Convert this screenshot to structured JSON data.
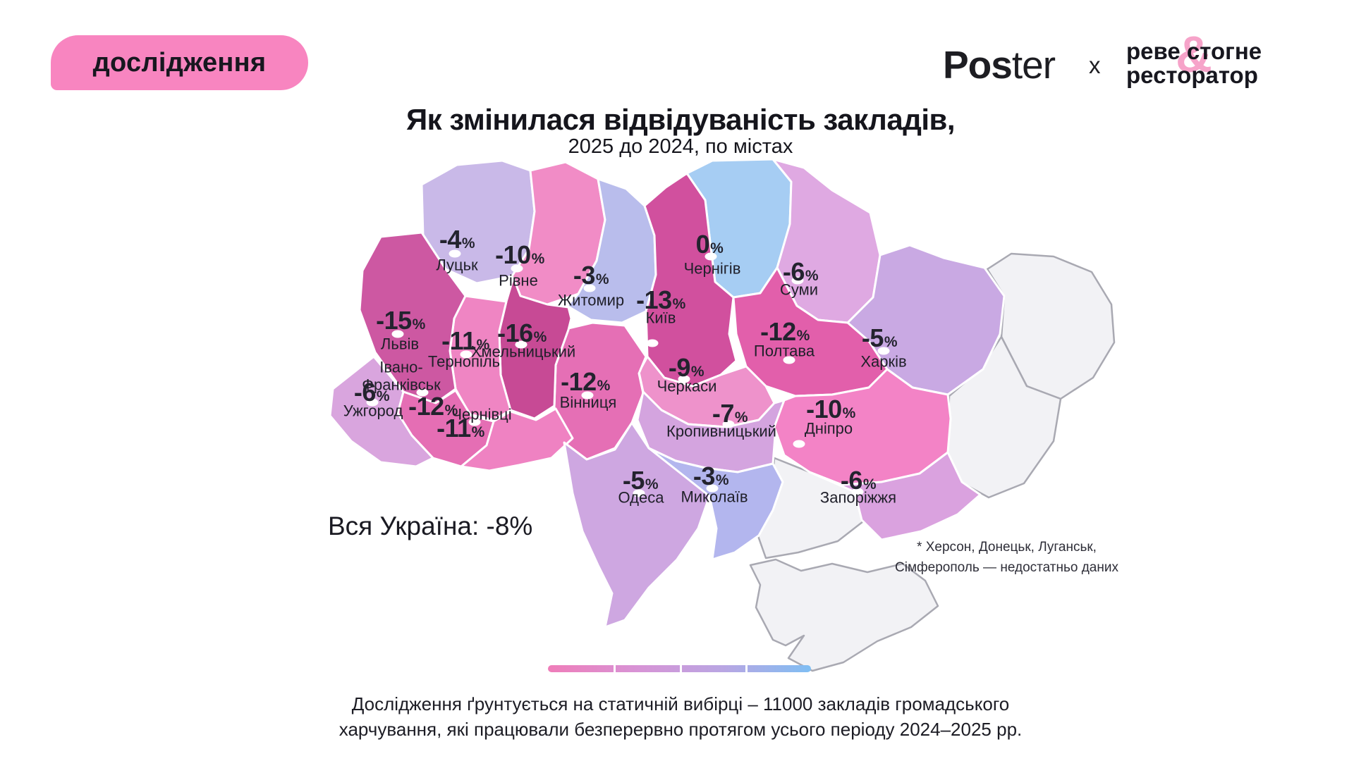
{
  "badge": {
    "label": "дослідження",
    "bg": "#F885C0",
    "text_color": "#17171F"
  },
  "header": {
    "poster_bold": "Pos",
    "poster_regular": "ter",
    "separator": "x",
    "brand_line1_a": "реве",
    "brand_amp": "&",
    "brand_line1_b": "стогне",
    "brand_line2": "ресторатор",
    "amp_color": "#F6A3C9"
  },
  "title": {
    "main": "Як змінилася відвідуваність закладів,",
    "subtitle": "2025 до 2024, по містах"
  },
  "summary": {
    "text": "Вся Україна: -8%"
  },
  "footnote": {
    "line1": "* Херсон, Донецьк, Луганськ,",
    "line2": "Сімферополь — недостатньо даних"
  },
  "footer": {
    "line1": "Дослідження ґрунтується на статичній вибірці – 11000 закладів громадського",
    "line2": "харчування, які працювали безперервно протягом усього періоду 2024–2025 рр."
  },
  "legend": {
    "gradient_colors": [
      "#EF7DB9",
      "#D893D5",
      "#B9A6E3",
      "#7FBEF3"
    ]
  },
  "chart_data": {
    "type": "choropleth-map",
    "title": "Як змінилася відвідуваність закладів, 2025 до 2024, по містах",
    "unit": "%",
    "overall_ukraine": "-8%",
    "regions": [
      {
        "id": "lutsk",
        "city": "Луцьк",
        "value": "-4%",
        "value_num": -4,
        "color": "#C9B9E8"
      },
      {
        "id": "rivne",
        "city": "Рівне",
        "value": "-10%",
        "value_num": -10,
        "color": "#F18CC6"
      },
      {
        "id": "zhytomyr",
        "city": "Житомир",
        "value": "-3%",
        "value_num": -3,
        "color": "#B9BDEC"
      },
      {
        "id": "chernihiv",
        "city": "Чернігів",
        "value": "0%",
        "value_num": 0,
        "color": "#A6CDF3"
      },
      {
        "id": "sumy",
        "city": "Суми",
        "value": "-6%",
        "value_num": -6,
        "color": "#DFA9E2"
      },
      {
        "id": "kyiv",
        "city": "Київ",
        "value": "-13%",
        "value_num": -13,
        "color": "#D1509E"
      },
      {
        "id": "kharkiv",
        "city": "Харків",
        "value": "-5%",
        "value_num": -5,
        "color": "#C9A9E3"
      },
      {
        "id": "poltava",
        "city": "Полтава",
        "value": "-12%",
        "value_num": -12,
        "color": "#E25FAB"
      },
      {
        "id": "cherkasy",
        "city": "Черкаси",
        "value": "-9%",
        "value_num": -9,
        "color": "#EE92CB"
      },
      {
        "id": "vinnytsia",
        "city": "Вінниця",
        "value": "-12%",
        "value_num": -12,
        "color": "#E56FB5"
      },
      {
        "id": "khmelnytskyi",
        "city": "Хмельницький",
        "value": "-16%",
        "value_num": -16,
        "color": "#C74A95"
      },
      {
        "id": "ternopil",
        "city": "Тернопіль",
        "value": "-11%",
        "value_num": -11,
        "color": "#EF85C3"
      },
      {
        "id": "lviv",
        "city": "Львів",
        "value": "-15%",
        "value_num": -15,
        "color": "#CD58A2"
      },
      {
        "id": "ivano",
        "city": "Івано-Франківськ",
        "value": "-12%",
        "value_num": -12,
        "color": "#E56EB4"
      },
      {
        "id": "chernivtsi",
        "city": "Чернівці",
        "value": "-11%",
        "value_num": -11,
        "color": "#EF82C2"
      },
      {
        "id": "uzhhorod",
        "city": "Ужгород",
        "value": "-6%",
        "value_num": -6,
        "color": "#D9A5DE"
      },
      {
        "id": "kropyvnytskyi",
        "city": "Кропивницький",
        "value": "-7%",
        "value_num": -7,
        "color": "#D4A4DF"
      },
      {
        "id": "odesa",
        "city": "Одеса",
        "value": "-5%",
        "value_num": -5,
        "color": "#CEA7E1"
      },
      {
        "id": "mykolaiv",
        "city": "Миколаїв",
        "value": "-3%",
        "value_num": -3,
        "color": "#B3B6EE"
      },
      {
        "id": "dnipro",
        "city": "Дніпро",
        "value": "-10%",
        "value_num": -10,
        "color": "#F383C6"
      },
      {
        "id": "zaporizhzhia",
        "city": "Запоріжжя",
        "value": "-6%",
        "value_num": -6,
        "color": "#DAA2DF"
      }
    ],
    "no_data_regions": [
      "Херсон",
      "Донецьк",
      "Луганськ",
      "Сімферополь"
    ],
    "no_data_fill": "#F2F2F5",
    "no_data_stroke": "#A9A9B2"
  }
}
